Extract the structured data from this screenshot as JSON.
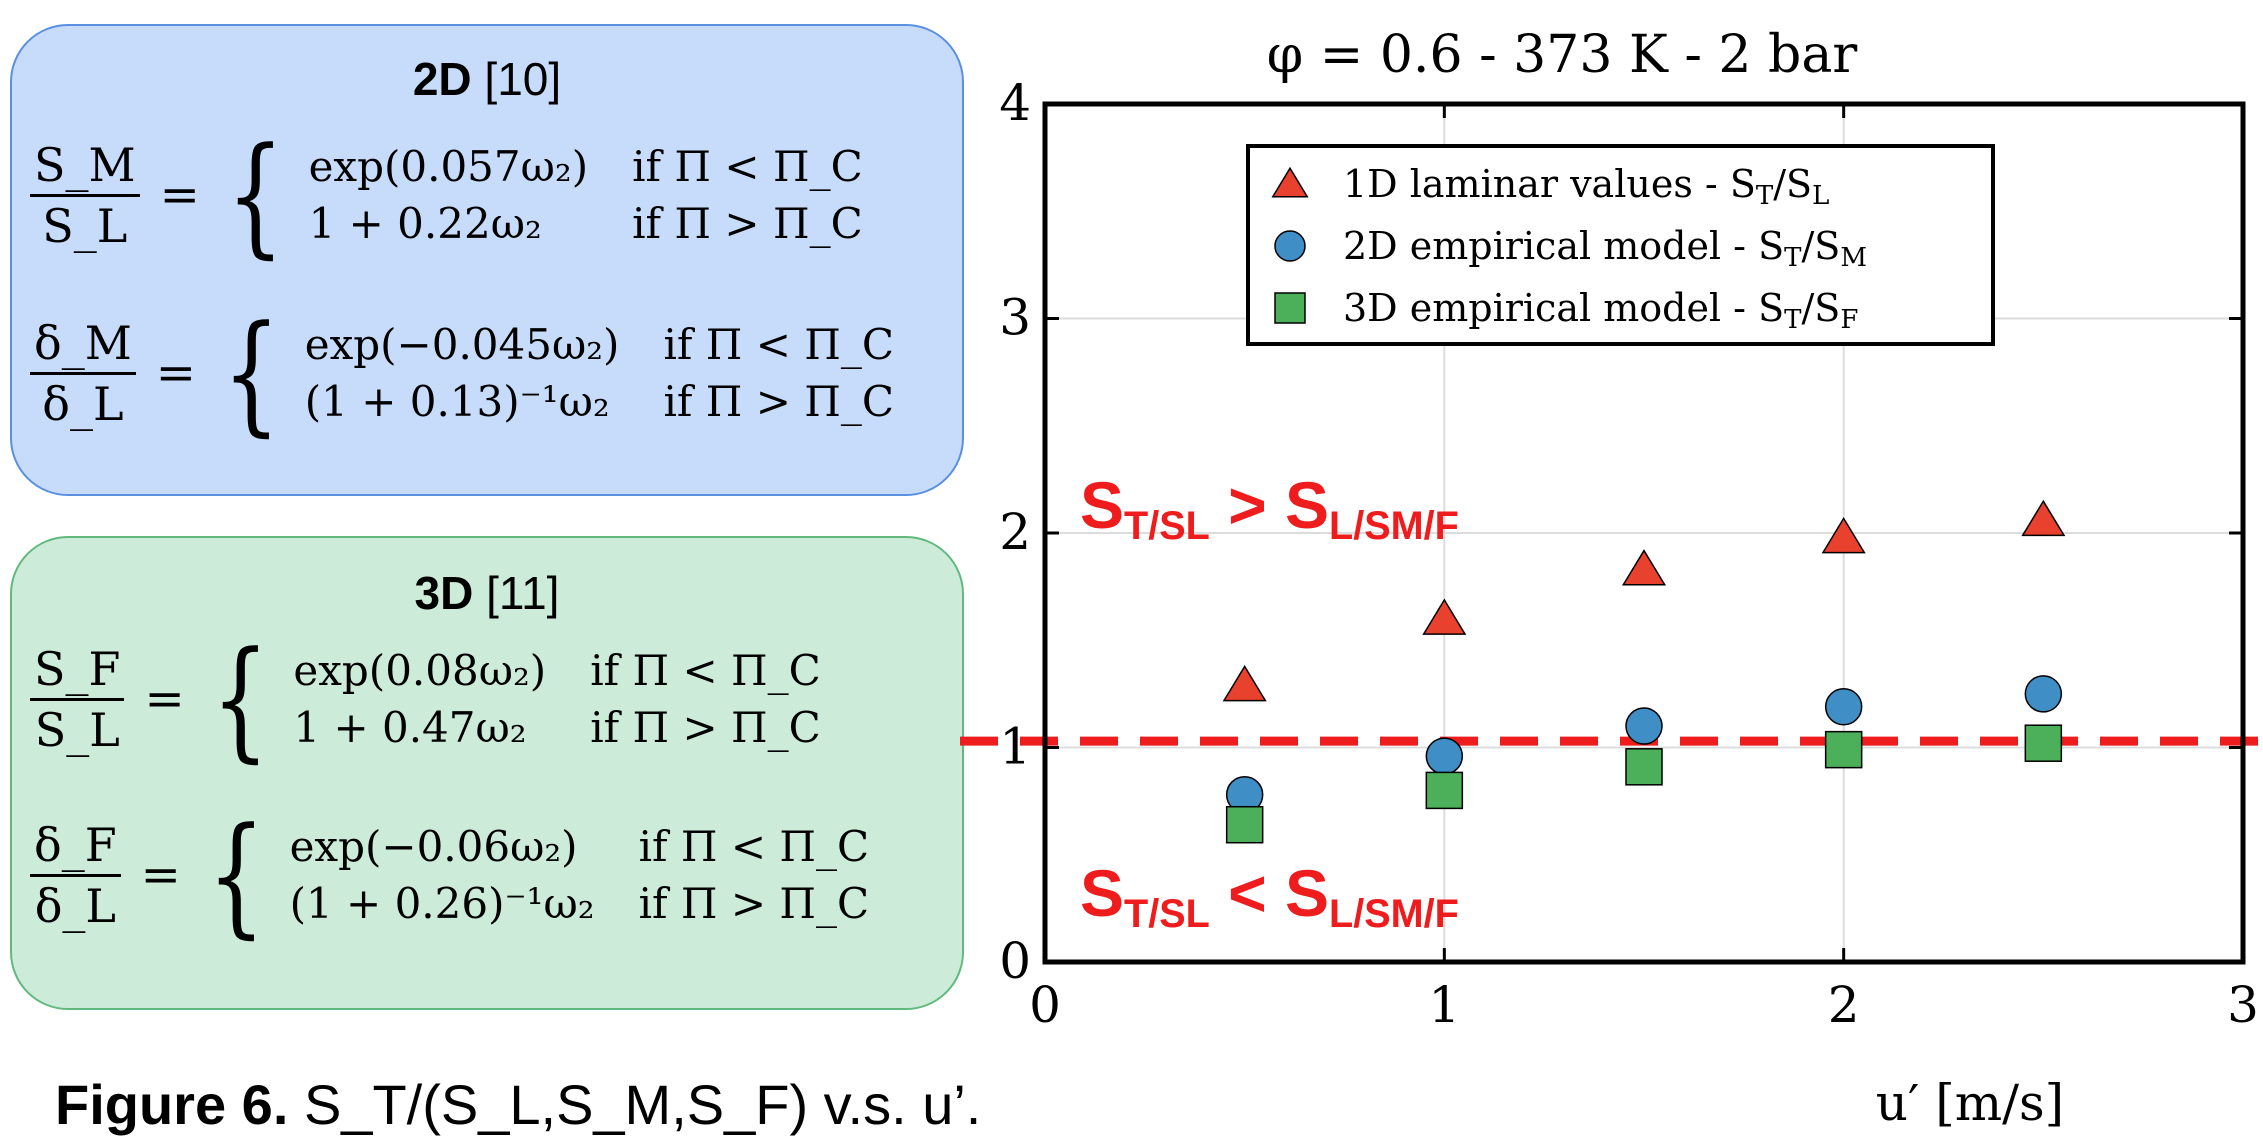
{
  "panels": {
    "panel_2d": {
      "title_bold": "2D",
      "title_ref": "[10]",
      "eq1": {
        "lhs_num": "S_M",
        "lhs_den": "S_L",
        "case1_expr": "exp(0.057ω₂)",
        "case1_cond": "if Π < Π_C",
        "case2_expr": "1 + 0.22ω₂",
        "case2_cond": "if Π > Π_C"
      },
      "eq2": {
        "lhs_num": "δ_M",
        "lhs_den": "δ_L",
        "case1_expr": "exp(−0.045ω₂)",
        "case1_cond": "if Π < Π_C",
        "case2_expr": "(1 + 0.13)⁻¹ω₂",
        "case2_cond": "if Π > Π_C"
      }
    },
    "panel_3d": {
      "title_bold": "3D",
      "title_ref": "[11]",
      "eq1": {
        "lhs_num": "S_F",
        "lhs_den": "S_L",
        "case1_expr": "exp(0.08ω₂)",
        "case1_cond": "if Π < Π_C",
        "case2_expr": "1 + 0.47ω₂",
        "case2_cond": "if Π > Π_C"
      },
      "eq2": {
        "lhs_num": "δ_F",
        "lhs_den": "δ_L",
        "case1_expr": "exp(−0.06ω₂)",
        "case1_cond": "if Π < Π_C",
        "case2_expr": "(1 + 0.26)⁻¹ω₂",
        "case2_cond": "if Π > Π_C"
      }
    }
  },
  "caption": {
    "label": "Figure 6.",
    "text": "S_T/(S_L,S_M,S_F) v.s. u’."
  },
  "chart_data": {
    "type": "scatter",
    "title": "φ = 0.6 - 373 K - 2 bar",
    "xlabel": "u′ [m/s]",
    "ylabel": "",
    "xlim": [
      0,
      3
    ],
    "ylim": [
      0,
      4
    ],
    "xticks": [
      0,
      1,
      2,
      3
    ],
    "yticks": [
      0,
      1,
      2,
      3,
      4
    ],
    "grid": true,
    "legend_position": "top-right",
    "series": [
      {
        "name": "1D laminar values - S_T/S_L",
        "marker": "triangle",
        "color": "#e8412e",
        "x": [
          0.5,
          1.0,
          1.5,
          2.0,
          2.5
        ],
        "y": [
          1.29,
          1.6,
          1.83,
          1.98,
          2.06
        ]
      },
      {
        "name": "2D empirical model - S_T/S_M",
        "marker": "circle",
        "color": "#3f8fc6",
        "x": [
          0.5,
          1.0,
          1.5,
          2.0,
          2.5
        ],
        "y": [
          0.78,
          0.96,
          1.1,
          1.19,
          1.25
        ]
      },
      {
        "name": "3D empirical model - S_T/S_F",
        "marker": "square",
        "color": "#4caf5a",
        "x": [
          0.5,
          1.0,
          1.5,
          2.0,
          2.5
        ],
        "y": [
          0.64,
          0.8,
          0.91,
          0.99,
          1.02
        ]
      }
    ],
    "reference_line": {
      "y": 1.03,
      "style": "dashed",
      "color": "#ee1c1c"
    },
    "annotations": [
      {
        "text": "S_T/S_L > S_L/S_M/F",
        "region": "above line",
        "color": "#ee1c1c"
      },
      {
        "text": "S_T/S_L < S_L/S_M/F",
        "region": "below line",
        "color": "#ee1c1c"
      }
    ]
  }
}
